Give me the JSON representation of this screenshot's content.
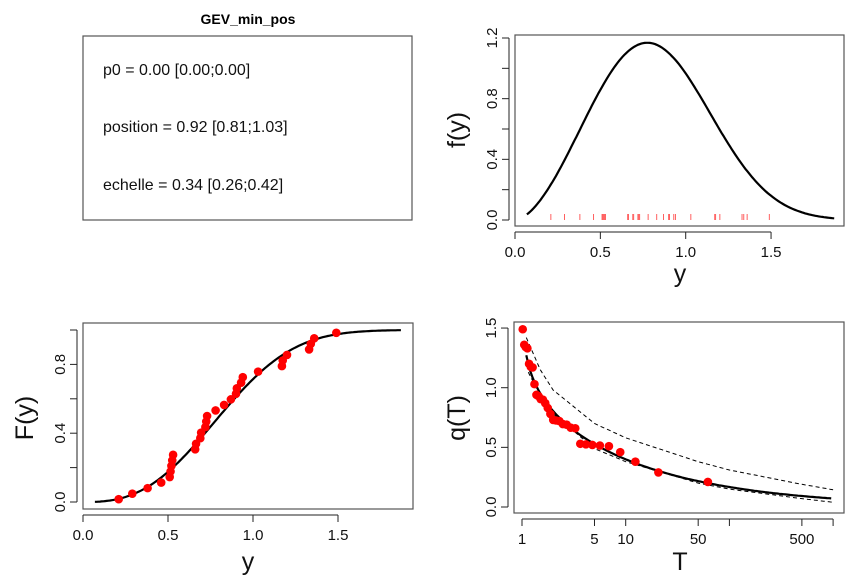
{
  "chart_data": [
    {
      "type": "table",
      "panel": "parameters",
      "title": "GEV_min_pos",
      "rows": [
        "p0 = 0.00 [0.00;0.00]",
        "position = 0.92 [0.81;1.03]",
        "echelle = 0.34 [0.26;0.42]"
      ]
    },
    {
      "type": "line",
      "panel": "density",
      "xlabel": "y",
      "ylabel": "f(y)",
      "xlim": [
        0,
        1.9
      ],
      "ylim": [
        0,
        1.2
      ],
      "xticks": [
        "0.0",
        "0.5",
        "1.0",
        "1.5"
      ],
      "xtick_values": [
        0,
        0.5,
        1.0,
        1.5
      ],
      "yticks": [
        "0.0",
        "0.4",
        "0.8",
        "1.2"
      ],
      "ytick_values": [
        0,
        0.4,
        0.8,
        1.2
      ],
      "yminor_values": [
        0.2,
        0.6,
        1.0
      ],
      "curve": {
        "model": "weibull",
        "scale": 0.92,
        "shape": 2.7,
        "x_from": 0.07,
        "x_to": 1.88
      },
      "rug_color": "#ff6060",
      "curve_color": "#000000"
    },
    {
      "type": "scatter",
      "panel": "cdf",
      "xlabel": "y",
      "ylabel": "F(y)",
      "xlim": [
        0,
        1.9
      ],
      "ylim": [
        0,
        1
      ],
      "xticks": [
        "0.0",
        "0.5",
        "1.0",
        "1.5"
      ],
      "xtick_values": [
        0,
        0.5,
        1.0,
        1.5
      ],
      "yticks": [
        "0.0",
        "0.4",
        "0.8"
      ],
      "ytick_values": [
        0,
        0.4,
        0.8
      ],
      "yminor_values": [
        0.2,
        0.6,
        1.0
      ],
      "curve": {
        "model": "weibull",
        "scale": 0.92,
        "shape": 2.7,
        "x_from": 0.07,
        "x_to": 1.88
      },
      "point_color": "#ff0000"
    },
    {
      "type": "scatter",
      "panel": "return-level",
      "xlabel": "T",
      "ylabel": "q(T)",
      "xscale": "log",
      "xlim": [
        1,
        1000
      ],
      "ylim": [
        0,
        1.5
      ],
      "xticks": [
        "1",
        "5",
        "10",
        "50",
        "",
        "500",
        ""
      ],
      "xtick_values": [
        1,
        5,
        10,
        50,
        100,
        500,
        1000
      ],
      "yticks": [
        "0.0",
        "0.5",
        "1.0",
        "1.5"
      ],
      "ytick_values": [
        0,
        0.5,
        1.0,
        1.5
      ],
      "curve": {
        "model": "weibull-return",
        "scale": 0.92,
        "shape": 2.7,
        "T_from": 1.1,
        "T_to": 1000
      },
      "band_upper": {
        "T": [
          1.1,
          1.5,
          2,
          5,
          10,
          50,
          100,
          500,
          1000
        ],
        "q": [
          1.42,
          1.15,
          0.98,
          0.7,
          0.58,
          0.38,
          0.31,
          0.19,
          0.145
        ]
      },
      "band_lower": {
        "T": [
          1.15,
          1.5,
          2,
          5,
          10,
          50,
          100,
          500,
          1000
        ],
        "q": [
          1.13,
          0.93,
          0.78,
          0.49,
          0.38,
          0.2,
          0.15,
          0.07,
          0.04
        ]
      },
      "point_color": "#ff0000"
    }
  ],
  "observations": [
    0.21,
    0.29,
    0.38,
    0.46,
    0.51,
    0.515,
    0.52,
    0.525,
    0.53,
    0.66,
    0.665,
    0.69,
    0.695,
    0.72,
    0.725,
    0.73,
    0.78,
    0.83,
    0.87,
    0.9,
    0.905,
    0.93,
    0.94,
    1.03,
    1.17,
    1.175,
    1.2,
    1.33,
    1.34,
    1.36,
    1.49
  ]
}
